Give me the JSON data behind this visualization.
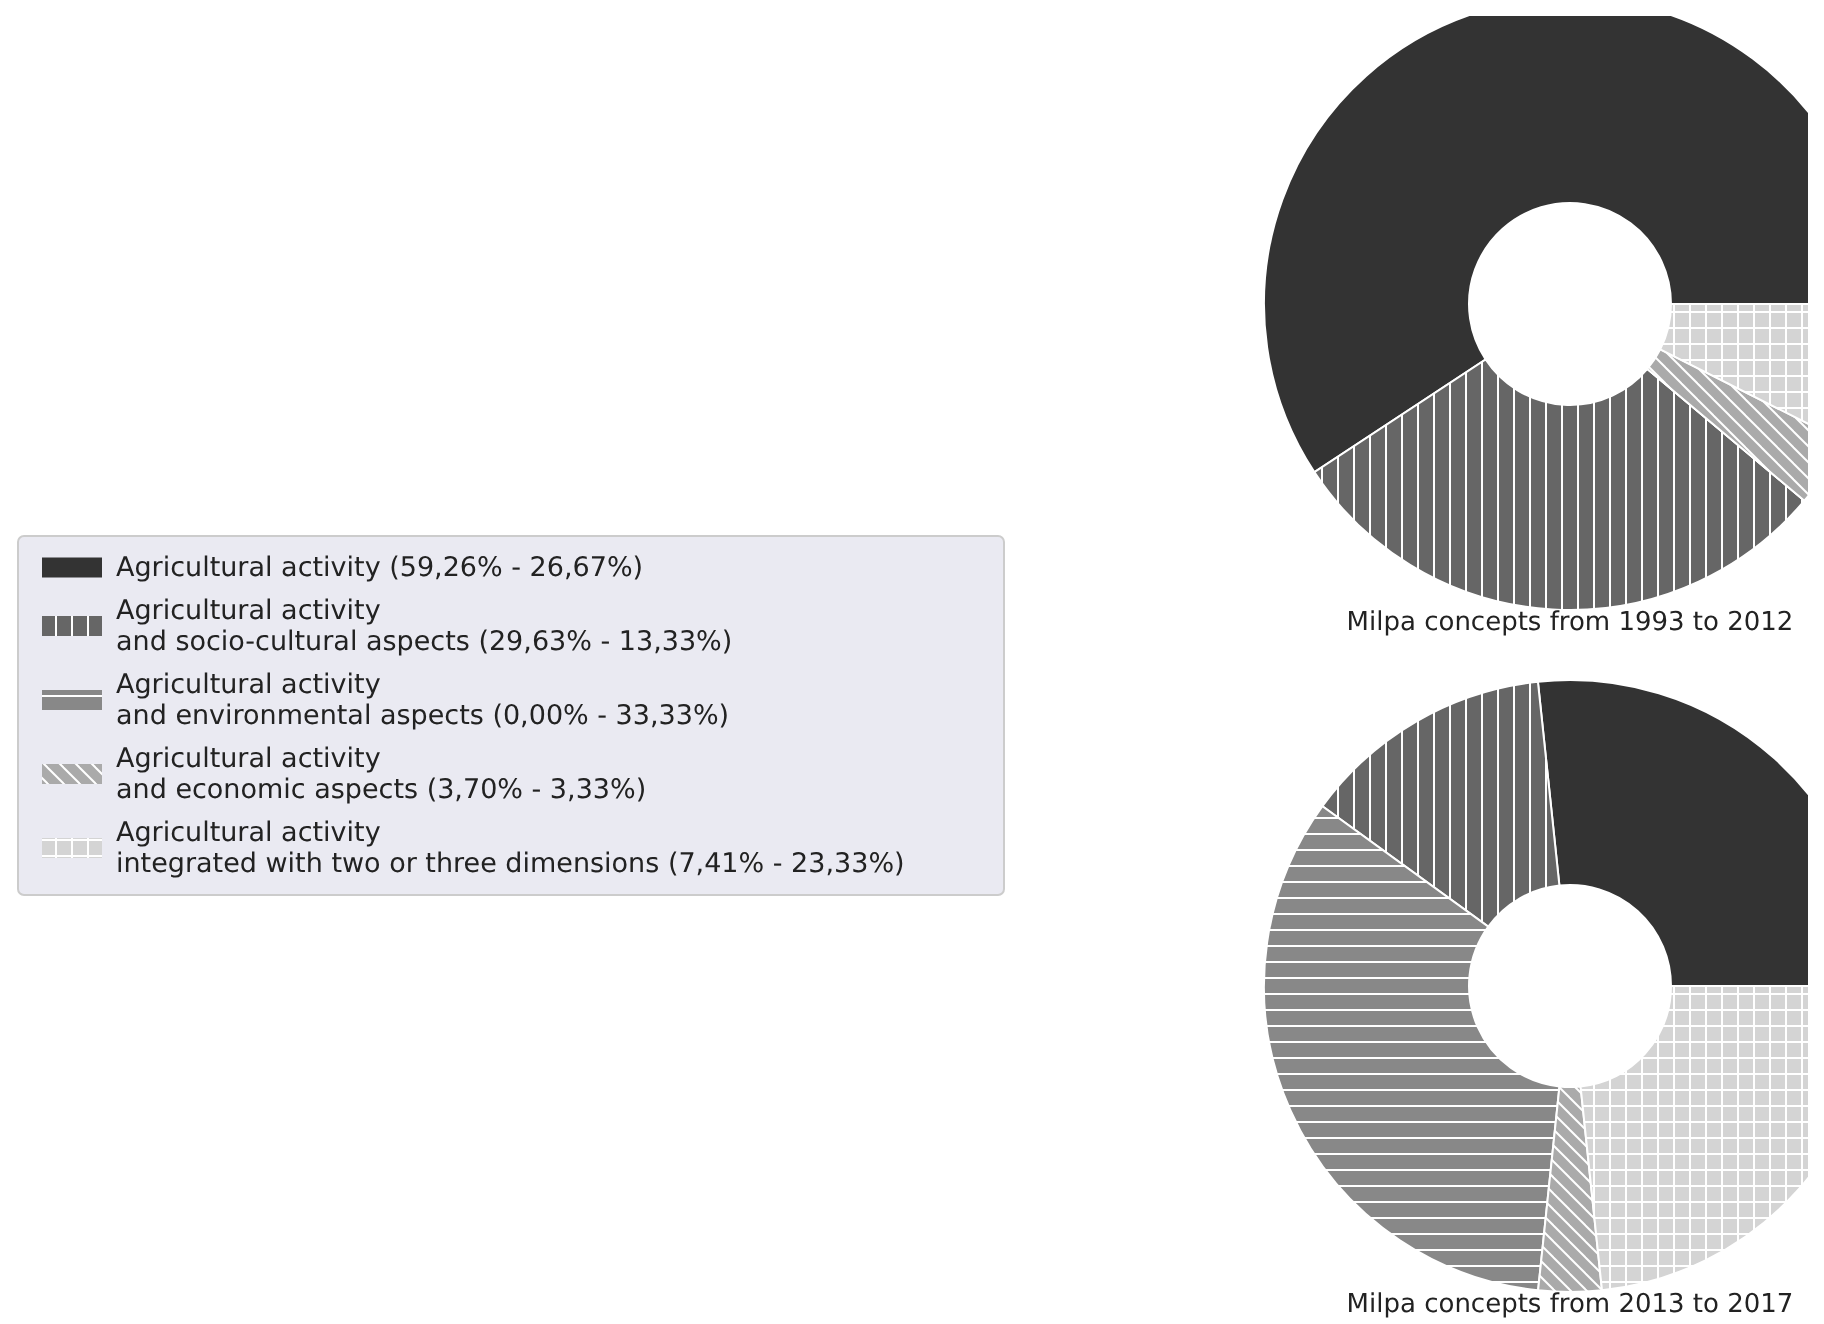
{
  "chart_data": [
    {
      "type": "donut",
      "title": "Milpa concepts from 1993 to 2012",
      "categories": [
        "Agricultural activity (59,26% - 26,67%)",
        "Agricultural activity\nand socio-cultural aspects (29,63% - 13,33%)",
        "Agricultural activity\nand environmental aspects (0,00% - 33,33%)",
        "Agricultural activity\nand economic aspects (3,70% - 3,33%)",
        "Agricultural activity\nintegrated with two or three dimensions (7,41% - 23,33%)"
      ],
      "values": [
        59.26,
        29.63,
        0,
        3.7,
        7.41
      ],
      "colors": [
        "#333333",
        "#666666",
        "#888888",
        "#aaaaaa",
        "#d4d4d4"
      ],
      "legend": "left"
    },
    {
      "type": "donut",
      "title": "Milpa concepts from 2013 to 2017",
      "categories": [
        null,
        null,
        null,
        null,
        null
      ],
      "values": [
        26.67,
        13.33,
        33.33,
        3.33,
        23.33
      ],
      "colors": [
        "#333333",
        "#666666",
        "#888888",
        "#aaaaaa",
        "#d4d4d4"
      ]
    }
  ]
}
